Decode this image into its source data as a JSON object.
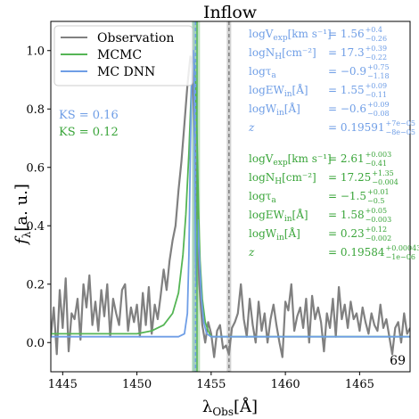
{
  "chart_data": {
    "type": "line",
    "title": "Inflow",
    "xlabel": "λ",
    "xlabel_sub": "Obs",
    "xlabel_unit": "[Å]",
    "ylabel": "f",
    "ylabel_sub": "λ",
    "ylabel_unit": "[a. u.]",
    "xlim": [
      1444.2,
      1468.4
    ],
    "ylim": [
      -0.1,
      1.1
    ],
    "xticks": [
      1445,
      1450,
      1455,
      1460,
      1465
    ],
    "yticks": [
      0.0,
      0.2,
      0.4,
      0.6,
      0.8,
      1.0
    ],
    "corner_label": "69",
    "legend": {
      "position": "top-left",
      "entries": [
        {
          "label": "Observation",
          "color": "#808080"
        },
        {
          "label": "MCMC",
          "color": "#55b555"
        },
        {
          "label": "MC DNN",
          "color": "#6f9ee6"
        }
      ]
    },
    "ks_labels": [
      {
        "text": "KS = 0.16",
        "color": "#6f9ee6"
      },
      {
        "text": "KS = 0.12",
        "color": "#3aa53a"
      }
    ],
    "vlines": [
      {
        "x": 1453.95,
        "color": "#6f9ee6",
        "style": "dashed",
        "band": [
          1453.75,
          1454.05
        ]
      },
      {
        "x": 1454.05,
        "color": "#55b555",
        "style": "solid",
        "band": [
          1453.7,
          1454.25
        ]
      },
      {
        "x": 1456.2,
        "color": "#808080",
        "style": "dashed",
        "band": [
          1456.05,
          1456.35
        ]
      }
    ],
    "param_blocks": [
      {
        "color": "#6f9ee6",
        "rows": [
          {
            "name": "logV",
            "name_sub": "exp",
            "unit": "[km s⁻¹]",
            "value": "= 1.56",
            "sup": "+0.4",
            "sub": "−0.26"
          },
          {
            "name": "logN",
            "name_sub": "H",
            "unit": "[cm⁻²]",
            "value": "= 17.3",
            "sup": "+0.39",
            "sub": "−0.22"
          },
          {
            "name": "logτ",
            "name_sub": "a",
            "unit": "",
            "value": "= −0.9",
            "sup": "+0.75",
            "sub": "−1.18"
          },
          {
            "name": "logEW",
            "name_sub": "in",
            "unit": "[Å]",
            "value": "= 1.55",
            "sup": "+0.09",
            "sub": "−0.11"
          },
          {
            "name": "logW",
            "name_sub": "in",
            "unit": "[Å]",
            "value": "= −0.6",
            "sup": "+0.09",
            "sub": "−0.08"
          },
          {
            "name": "z",
            "name_sub": "",
            "unit": "",
            "value": "= 0.19591",
            "sup": "+7e−05",
            "sub": "−8e−05"
          }
        ]
      },
      {
        "color": "#3aa53a",
        "rows": [
          {
            "name": "logV",
            "name_sub": "exp",
            "unit": "[km s⁻¹]",
            "value": "= 2.61",
            "sup": "+0.003",
            "sub": "−0.41"
          },
          {
            "name": "logN",
            "name_sub": "H",
            "unit": "[cm⁻²]",
            "value": "= 17.25",
            "sup": "+1.35",
            "sub": "−0.004"
          },
          {
            "name": "logτ",
            "name_sub": "a",
            "unit": "",
            "value": "= −1.5",
            "sup": "+0.01",
            "sub": "−0.5"
          },
          {
            "name": "logEW",
            "name_sub": "in",
            "unit": "[Å]",
            "value": "= 1.58",
            "sup": "+0.05",
            "sub": "−0.003"
          },
          {
            "name": "logW",
            "name_sub": "in",
            "unit": "[Å]",
            "value": "= 0.23",
            "sup": "+0.12",
            "sub": "−0.002"
          },
          {
            "name": "z",
            "name_sub": "",
            "unit": "",
            "value": "= 0.19584",
            "sup": "+0.00043",
            "sub": "−1e−06"
          }
        ]
      }
    ],
    "series": [
      {
        "name": "Observation",
        "color": "#808080",
        "x": [
          1444.2,
          1444.4,
          1444.6,
          1444.8,
          1445.0,
          1445.2,
          1445.4,
          1445.6,
          1445.8,
          1446.0,
          1446.2,
          1446.4,
          1446.6,
          1446.8,
          1447.0,
          1447.2,
          1447.4,
          1447.6,
          1447.8,
          1448.0,
          1448.2,
          1448.4,
          1448.6,
          1448.8,
          1449.0,
          1449.2,
          1449.4,
          1449.6,
          1449.8,
          1450.0,
          1450.2,
          1450.4,
          1450.6,
          1450.8,
          1451.0,
          1451.2,
          1451.4,
          1451.6,
          1451.8,
          1452.0,
          1452.2,
          1452.4,
          1452.6,
          1452.8,
          1453.0,
          1453.2,
          1453.4,
          1453.6,
          1453.7,
          1453.8,
          1453.9,
          1454.0,
          1454.1,
          1454.2,
          1454.4,
          1454.6,
          1454.8,
          1455.0,
          1455.2,
          1455.4,
          1455.6,
          1455.8,
          1456.0,
          1456.2,
          1456.4,
          1456.6,
          1456.8,
          1457.0,
          1457.2,
          1457.4,
          1457.6,
          1457.8,
          1458.0,
          1458.2,
          1458.4,
          1458.6,
          1458.8,
          1459.0,
          1459.2,
          1459.4,
          1459.6,
          1459.8,
          1460.0,
          1460.2,
          1460.4,
          1460.6,
          1460.8,
          1461.0,
          1461.2,
          1461.4,
          1461.6,
          1461.8,
          1462.0,
          1462.2,
          1462.4,
          1462.6,
          1462.8,
          1463.0,
          1463.2,
          1463.4,
          1463.6,
          1463.8,
          1464.0,
          1464.2,
          1464.4,
          1464.6,
          1464.8,
          1465.0,
          1465.2,
          1465.4,
          1465.6,
          1465.8,
          1466.0,
          1466.2,
          1466.4,
          1466.6,
          1466.8,
          1467.0,
          1467.2,
          1467.4,
          1467.6,
          1467.8,
          1468.0,
          1468.2,
          1468.4
        ],
        "values": [
          0.02,
          0.12,
          -0.04,
          0.18,
          0.05,
          0.22,
          -0.03,
          0.1,
          0.08,
          0.15,
          0.01,
          0.2,
          0.12,
          0.23,
          0.06,
          0.14,
          0.04,
          0.18,
          0.09,
          0.2,
          0.02,
          0.15,
          0.1,
          0.06,
          0.18,
          0.2,
          0.04,
          0.12,
          0.07,
          0.13,
          0.02,
          0.17,
          0.06,
          0.19,
          0.03,
          0.13,
          0.08,
          0.16,
          0.25,
          0.18,
          0.28,
          0.35,
          0.4,
          0.52,
          0.62,
          0.75,
          0.88,
          0.98,
          0.96,
          0.84,
          0.7,
          0.52,
          0.35,
          0.2,
          0.06,
          0.0,
          0.07,
          0.03,
          -0.05,
          0.04,
          0.06,
          -0.02,
          -0.01,
          -0.04,
          0.05,
          0.07,
          0.1,
          0.2,
          0.08,
          0.02,
          0.15,
          0.06,
          0.0,
          0.14,
          0.04,
          0.1,
          0.0,
          0.08,
          0.13,
          0.06,
          0.0,
          -0.05,
          0.14,
          0.11,
          0.2,
          0.04,
          0.09,
          0.12,
          0.05,
          0.15,
          0.0,
          0.16,
          0.08,
          0.12,
          0.07,
          -0.03,
          0.1,
          0.05,
          0.15,
          0.02,
          0.19,
          0.08,
          0.13,
          0.05,
          0.14,
          0.08,
          0.1,
          0.04,
          0.12,
          0.07,
          0.03,
          0.1,
          0.06,
          0.04,
          0.13,
          0.05,
          0.08,
          0.02,
          -0.04,
          0.05,
          0.07,
          0.0,
          0.1,
          0.03,
          0.05
        ]
      },
      {
        "name": "MCMC",
        "color": "#55b555",
        "x": [
          1444.2,
          1450.0,
          1451.0,
          1451.8,
          1452.4,
          1452.8,
          1453.1,
          1453.3,
          1453.5,
          1453.65,
          1453.75,
          1453.85,
          1453.95,
          1454.05,
          1454.15,
          1454.25,
          1454.4,
          1454.6,
          1454.8,
          1455.0,
          1455.3,
          1455.6,
          1456.0,
          1468.4
        ],
        "values": [
          0.03,
          0.03,
          0.04,
          0.06,
          0.1,
          0.17,
          0.3,
          0.44,
          0.65,
          0.85,
          0.98,
          0.96,
          0.88,
          0.7,
          0.45,
          0.28,
          0.15,
          0.07,
          0.04,
          0.02,
          0.02,
          0.02,
          0.02,
          0.02
        ]
      },
      {
        "name": "MC DNN",
        "color": "#6f9ee6",
        "x": [
          1444.2,
          1452.8,
          1453.2,
          1453.4,
          1453.5,
          1453.6,
          1453.7,
          1453.8,
          1453.85,
          1453.9,
          1453.95,
          1454.0,
          1454.1,
          1454.2,
          1454.35,
          1454.5,
          1454.7,
          1455.0,
          1468.4
        ],
        "values": [
          0.02,
          0.02,
          0.03,
          0.1,
          0.3,
          0.65,
          0.95,
          1.0,
          0.95,
          0.62,
          0.3,
          0.2,
          0.42,
          0.3,
          0.15,
          0.07,
          0.03,
          0.02,
          0.02
        ]
      }
    ]
  }
}
